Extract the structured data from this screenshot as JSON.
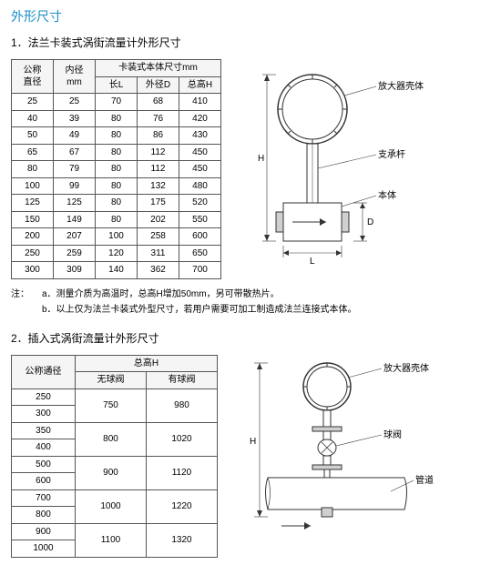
{
  "mainTitle": "外形尺寸",
  "section1": {
    "title": "1．法兰卡装式涡街流量计外形尺寸",
    "headers": {
      "col1": "公称\n直径",
      "col2": "内径\nmm",
      "group": "卡装式本体尺寸mm",
      "sub1": "长L",
      "sub2": "外径D",
      "sub3": "总高H"
    },
    "rows": [
      [
        "25",
        "25",
        "70",
        "68",
        "410"
      ],
      [
        "40",
        "39",
        "80",
        "76",
        "420"
      ],
      [
        "50",
        "49",
        "80",
        "86",
        "430"
      ],
      [
        "65",
        "67",
        "80",
        "112",
        "450"
      ],
      [
        "80",
        "79",
        "80",
        "112",
        "450"
      ],
      [
        "100",
        "99",
        "80",
        "132",
        "480"
      ],
      [
        "125",
        "125",
        "80",
        "175",
        "520"
      ],
      [
        "150",
        "149",
        "80",
        "202",
        "550"
      ],
      [
        "200",
        "207",
        "100",
        "258",
        "600"
      ],
      [
        "250",
        "259",
        "120",
        "311",
        "650"
      ],
      [
        "300",
        "309",
        "140",
        "362",
        "700"
      ]
    ],
    "notes": {
      "prefix": "注：",
      "a": "a．测量介质为高温时，总高H增加50mm，另可带散热片。",
      "b": "b．以上仅为法兰卡装式外型尺寸，若用户需要可加工制造成法兰连接式本体。"
    },
    "diagram": {
      "label_amp": "放大器壳体",
      "label_rod": "支承杆",
      "label_body": "本体",
      "dim_H": "H",
      "dim_D": "D",
      "dim_L": "L",
      "colors": {
        "stroke": "#333",
        "fill": "#fff",
        "shade": "#d0d0d0"
      }
    }
  },
  "section2": {
    "title": "2．插入式涡街流量计外形尺寸",
    "headers": {
      "col1": "公称通径",
      "group": "总高H",
      "sub1": "无球阀",
      "sub2": "有球阀"
    },
    "rows": [
      {
        "dn": "250",
        "h1": "750",
        "h2": "980",
        "span": 2
      },
      {
        "dn": "300"
      },
      {
        "dn": "350",
        "h1": "800",
        "h2": "1020",
        "span": 2
      },
      {
        "dn": "400"
      },
      {
        "dn": "500",
        "h1": "900",
        "h2": "1120",
        "span": 2
      },
      {
        "dn": "600"
      },
      {
        "dn": "700",
        "h1": "1000",
        "h2": "1220",
        "span": 2
      },
      {
        "dn": "800"
      },
      {
        "dn": "900",
        "h1": "1100",
        "h2": "1320",
        "span": 2
      },
      {
        "dn": "1000"
      }
    ],
    "diagram": {
      "label_amp": "放大器壳体",
      "label_valve": "球阀",
      "label_pipe": "管道",
      "dim_H": "H",
      "colors": {
        "stroke": "#333",
        "fill": "#fff",
        "shade": "#d0d0d0"
      }
    }
  }
}
